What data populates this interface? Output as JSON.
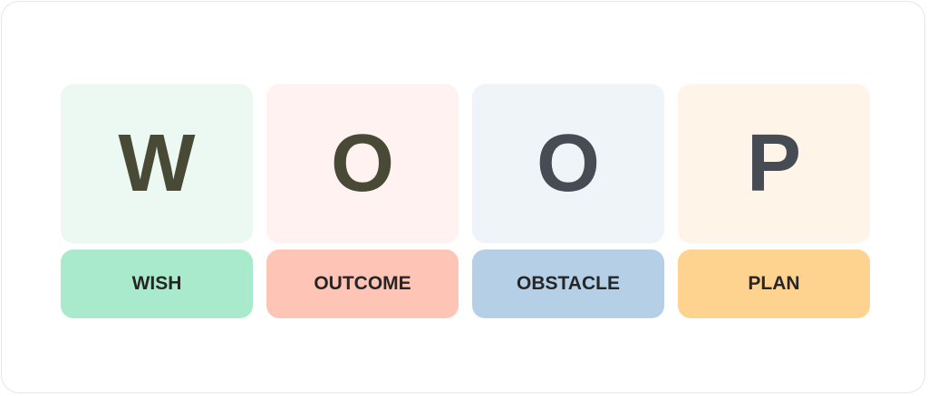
{
  "cards": [
    {
      "letter": "W",
      "label": "WISH",
      "bg": "#ebf9f2",
      "label_bg": "#a8eacb",
      "letter_color": "#484a36"
    },
    {
      "letter": "O",
      "label": "OUTCOME",
      "bg": "#fff2f0",
      "label_bg": "#fec5b6",
      "letter_color": "#484a36"
    },
    {
      "letter": "O",
      "label": "OBSTACLE",
      "bg": "#eff4f9",
      "label_bg": "#b5cfe6",
      "letter_color": "#474b53"
    },
    {
      "letter": "P",
      "label": "PLAN",
      "bg": "#fef5e8",
      "label_bg": "#fed38f",
      "letter_color": "#474b53"
    }
  ]
}
